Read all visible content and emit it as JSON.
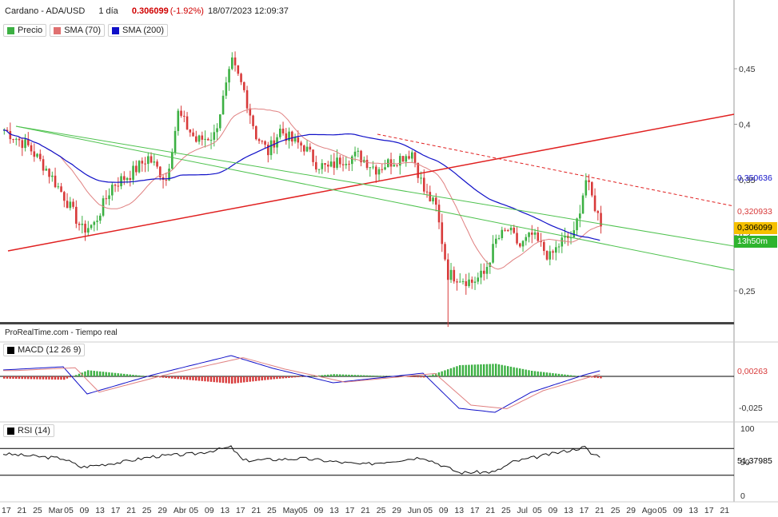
{
  "header": {
    "instrument": "Cardano - ADA/USD",
    "timeframe": "1 día",
    "last_price": "0.306099",
    "change": "(-1.92%)",
    "datetime": "18/07/2023 12:09:37"
  },
  "legend": [
    {
      "label": "Precio",
      "color": "#3cb043"
    },
    {
      "label": "SMA (70)",
      "color": "#e07070"
    },
    {
      "label": "SMA (200)",
      "color": "#1010c8"
    }
  ],
  "source_note": "ProRealTime.com    - Tiempo real",
  "macd_panel": {
    "label": "MACD (12 26 9)",
    "value_tag": "0,00263"
  },
  "rsi_panel": {
    "label": "RSI (14)",
    "value_tag": "51,37985"
  },
  "price_tags": {
    "sma200": "0,350636",
    "sma70": "0,320933",
    "last": "0,306099",
    "countdown": "13h50m"
  },
  "colors": {
    "up": "#3cb043",
    "down": "#d83a3a",
    "trend_red": "#e02020",
    "channel_green": "#4ec24e"
  },
  "chart_data": {
    "type": "candlestick",
    "price_axis": {
      "ticks": [
        0.25,
        0.3,
        0.35,
        0.4,
        0.45
      ],
      "tick_labels": [
        "0,25",
        "0,3",
        "0,35",
        "0,4",
        "0,45"
      ],
      "range": [
        0.22,
        0.48
      ]
    },
    "macd_axis": {
      "ticks": [
        -0.025
      ],
      "tick_labels": [
        "-0,025"
      ]
    },
    "rsi_axis": {
      "ticks": [
        100,
        50,
        0
      ],
      "tick_labels": [
        "100",
        "50",
        "0"
      ],
      "levels": [
        70,
        30
      ]
    },
    "x_tick_labels": [
      "17",
      "21",
      "25",
      "Mar",
      "05",
      "09",
      "13",
      "17",
      "21",
      "25",
      "29",
      "Abr",
      "05",
      "09",
      "13",
      "17",
      "21",
      "25",
      "May",
      "05",
      "09",
      "13",
      "17",
      "21",
      "25",
      "29",
      "Jun",
      "05",
      "09",
      "13",
      "17",
      "21",
      "25",
      "Jul",
      "05",
      "09",
      "13",
      "17",
      "21",
      "25",
      "29",
      "Ago",
      "05",
      "09",
      "13",
      "17",
      "21"
    ],
    "bars_count": 200,
    "overlays": [
      "SMA (70)",
      "SMA (200)",
      "trendline",
      "channel"
    ]
  }
}
